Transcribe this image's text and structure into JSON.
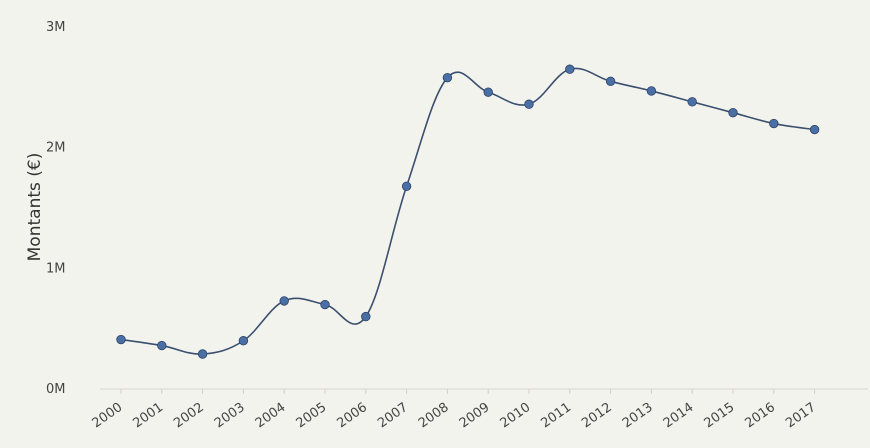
{
  "chart_data": {
    "type": "line",
    "title": "",
    "xlabel": "",
    "ylabel": "Montants (€)",
    "x": [
      "2000",
      "2001",
      "2002",
      "2003",
      "2004",
      "2005",
      "2006",
      "2007",
      "2008",
      "2009",
      "2010",
      "2011",
      "2012",
      "2013",
      "2014",
      "2015",
      "2016",
      "2017"
    ],
    "series": [
      {
        "values": [
          0.41,
          0.36,
          0.29,
          0.4,
          0.73,
          0.7,
          0.6,
          1.68,
          2.58,
          2.46,
          2.36,
          2.65,
          2.55,
          2.47,
          2.38,
          2.29,
          2.2,
          2.15
        ]
      }
    ],
    "yticks": [
      {
        "value": 0,
        "label": "0M"
      },
      {
        "value": 1,
        "label": "1M"
      },
      {
        "value": 2,
        "label": "2M"
      },
      {
        "value": 3,
        "label": "3M"
      }
    ],
    "ylim": [
      0,
      3
    ],
    "grid": false,
    "line_color": "#3b4f6e",
    "marker_color": "#4a6fa5"
  }
}
